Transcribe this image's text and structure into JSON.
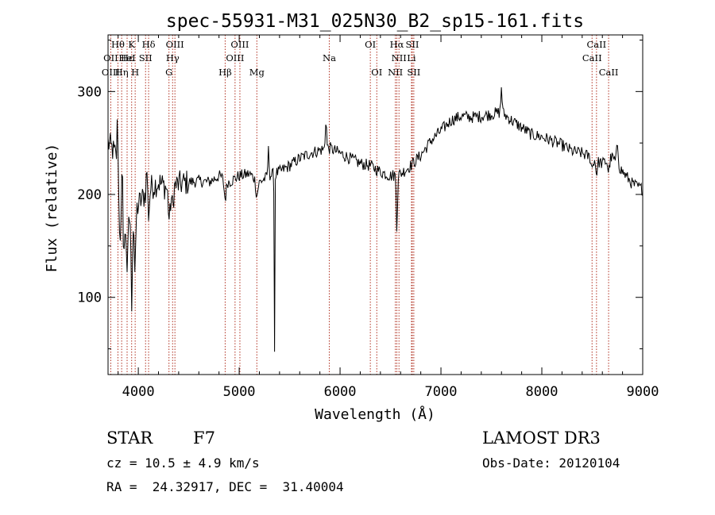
{
  "chart_data": {
    "type": "line",
    "title": "spec-55931-M31_025N30_B2_sp15-161.fits",
    "xlabel": "Wavelength (Å)",
    "ylabel": "Flux (relative)",
    "xlim": [
      3700,
      9000
    ],
    "ylim": [
      25,
      355
    ],
    "xticks": [
      4000,
      5000,
      6000,
      7000,
      8000,
      9000
    ],
    "yticks": [
      100,
      200,
      300
    ],
    "continuum_anchors": [
      [
        3700,
        250
      ],
      [
        3780,
        238
      ],
      [
        3850,
        195
      ],
      [
        3900,
        180
      ],
      [
        3950,
        172
      ],
      [
        4000,
        190
      ],
      [
        4100,
        205
      ],
      [
        4200,
        212
      ],
      [
        4300,
        205
      ],
      [
        4400,
        210
      ],
      [
        4500,
        212
      ],
      [
        4600,
        213
      ],
      [
        4700,
        212
      ],
      [
        4800,
        218
      ],
      [
        4900,
        212
      ],
      [
        5000,
        218
      ],
      [
        5100,
        220
      ],
      [
        5200,
        212
      ],
      [
        5300,
        218
      ],
      [
        5400,
        222
      ],
      [
        5500,
        228
      ],
      [
        5600,
        235
      ],
      [
        5700,
        240
      ],
      [
        5800,
        243
      ],
      [
        5900,
        245
      ],
      [
        6000,
        240
      ],
      [
        6100,
        235
      ],
      [
        6200,
        230
      ],
      [
        6300,
        228
      ],
      [
        6400,
        222
      ],
      [
        6500,
        218
      ],
      [
        6600,
        220
      ],
      [
        6700,
        228
      ],
      [
        6800,
        238
      ],
      [
        6900,
        252
      ],
      [
        7000,
        262
      ],
      [
        7100,
        272
      ],
      [
        7200,
        276
      ],
      [
        7300,
        275
      ],
      [
        7400,
        276
      ],
      [
        7500,
        278
      ],
      [
        7600,
        280
      ],
      [
        7700,
        272
      ],
      [
        7800,
        265
      ],
      [
        7900,
        258
      ],
      [
        8000,
        256
      ],
      [
        8100,
        252
      ],
      [
        8200,
        248
      ],
      [
        8300,
        242
      ],
      [
        8400,
        240
      ],
      [
        8500,
        235
      ],
      [
        8600,
        230
      ],
      [
        8700,
        236
      ],
      [
        8800,
        222
      ],
      [
        8900,
        210
      ],
      [
        9000,
        205
      ]
    ],
    "absorption_features": [
      [
        3820,
        18,
        50
      ],
      [
        3860,
        10,
        40
      ],
      [
        3890,
        8,
        55
      ],
      [
        3934,
        6,
        80
      ],
      [
        3968,
        6,
        60
      ],
      [
        4102,
        8,
        25
      ],
      [
        4308,
        10,
        30
      ],
      [
        4340,
        8,
        20
      ],
      [
        4861,
        10,
        18
      ],
      [
        5175,
        10,
        15
      ],
      [
        5350,
        3,
        175
      ],
      [
        6563,
        6,
        50
      ],
      [
        8498,
        8,
        10
      ],
      [
        8542,
        8,
        12
      ],
      [
        8662,
        8,
        12
      ]
    ],
    "emission_features": [
      [
        3795,
        6,
        60
      ],
      [
        3840,
        5,
        55
      ],
      [
        4085,
        6,
        25
      ],
      [
        5290,
        6,
        25
      ],
      [
        5860,
        6,
        30
      ],
      [
        7600,
        6,
        25
      ],
      [
        8750,
        8,
        20
      ]
    ],
    "noise_amplitude": 6,
    "samples": 700,
    "spectral_lines": [
      {
        "label": "Hθ",
        "wavelength": 3798,
        "row": 0
      },
      {
        "label": "OII",
        "wavelength": 3727,
        "row": 1
      },
      {
        "label": "OIII",
        "wavelength": 3727,
        "row": 2
      },
      {
        "label": "Hη",
        "wavelength": 3835,
        "row": 2
      },
      {
        "label": "K",
        "wavelength": 3934,
        "row": 0
      },
      {
        "label": "Hε",
        "wavelength": 3889,
        "row": 1
      },
      {
        "label": "H",
        "wavelength": 3969,
        "row": 2
      },
      {
        "label": "HeI",
        "wavelength": 3889,
        "row": 1
      },
      {
        "label": "SII",
        "wavelength": 4072,
        "row": 1
      },
      {
        "label": "Hδ",
        "wavelength": 4102,
        "row": 0
      },
      {
        "label": "OIII",
        "wavelength": 4363,
        "row": 0
      },
      {
        "label": "Hγ",
        "wavelength": 4340,
        "row": 1
      },
      {
        "label": "G",
        "wavelength": 4304,
        "row": 2
      },
      {
        "label": "OIII",
        "wavelength": 5007,
        "row": 0
      },
      {
        "label": "OIII",
        "wavelength": 4959,
        "row": 1
      },
      {
        "label": "Hβ",
        "wavelength": 4861,
        "row": 2
      },
      {
        "label": "Mg",
        "wavelength": 5175,
        "row": 2
      },
      {
        "label": "Na",
        "wavelength": 5893,
        "row": 1
      },
      {
        "label": "OI",
        "wavelength": 6300,
        "row": 0
      },
      {
        "label": "OI",
        "wavelength": 6364,
        "row": 2
      },
      {
        "label": "Hα",
        "wavelength": 6563,
        "row": 0
      },
      {
        "label": "SII",
        "wavelength": 6716,
        "row": 0
      },
      {
        "label": "NII",
        "wavelength": 6584,
        "row": 1
      },
      {
        "label": "Li",
        "wavelength": 6708,
        "row": 1
      },
      {
        "label": "NII",
        "wavelength": 6548,
        "row": 2
      },
      {
        "label": "SII",
        "wavelength": 6731,
        "row": 2
      },
      {
        "label": "CaII",
        "wavelength": 8542,
        "row": 0
      },
      {
        "label": "CaII",
        "wavelength": 8498,
        "row": 1
      },
      {
        "label": "CaII",
        "wavelength": 8662,
        "row": 2
      }
    ]
  },
  "info": {
    "object_class": "STAR",
    "subclass": "F7",
    "survey": "LAMOST DR3",
    "redshift": "cz = 10.5 ± 4.9 km/s",
    "obs_date": "Obs-Date: 20120104",
    "coords": "RA =  24.32917, DEC =  31.40004"
  }
}
